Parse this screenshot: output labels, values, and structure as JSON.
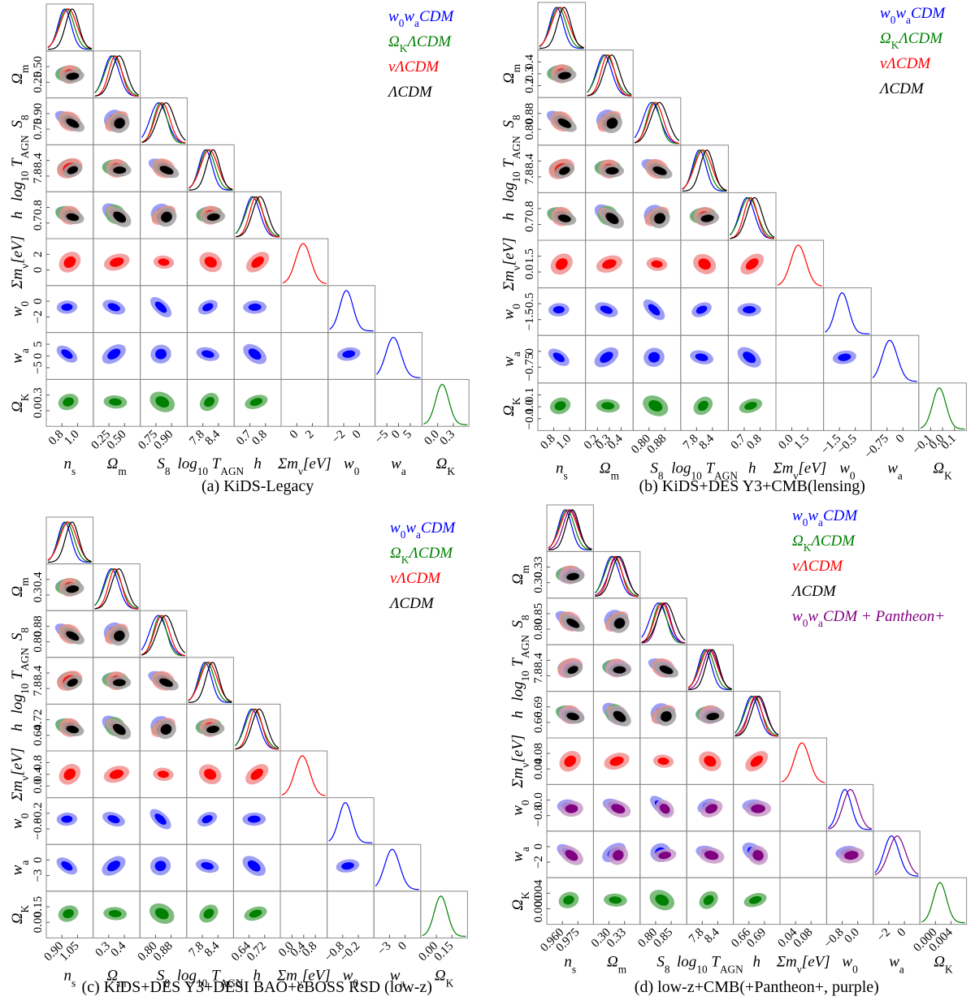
{
  "parameters": [
    {
      "label": [
        "n",
        {
          "sub": "s"
        }
      ]
    },
    {
      "label": [
        "Ω",
        {
          "sub": "m"
        }
      ]
    },
    {
      "label": [
        "S",
        {
          "sub": "8"
        }
      ]
    },
    {
      "label": [
        "log",
        {
          "sub": "10"
        },
        " T",
        {
          "sub": "AGN"
        }
      ]
    },
    {
      "label": [
        "h"
      ]
    },
    {
      "label": [
        "Σm",
        {
          "sub": "ν"
        },
        "[eV]"
      ]
    },
    {
      "label": [
        "w",
        {
          "sub": "0"
        }
      ]
    },
    {
      "label": [
        "w",
        {
          "sub": "a"
        }
      ]
    },
    {
      "label": [
        "Ω",
        {
          "sub": "K"
        }
      ]
    }
  ],
  "panels": [
    {
      "caption": "(a) KiDS-Legacy",
      "legend": [
        {
          "name": [
            "w",
            {
              "sub": "0"
            },
            "w",
            {
              "sub": "a"
            },
            "CDM"
          ],
          "color": "#0000ff"
        },
        {
          "name": [
            "Ω",
            {
              "sub": "K"
            },
            "ΛCDM"
          ],
          "color": "#008000"
        },
        {
          "name": [
            "νΛCDM"
          ],
          "color": "#ff0000"
        },
        {
          "name": [
            "ΛCDM"
          ],
          "color": "#000000"
        }
      ],
      "ticks": [
        [
          "0.8",
          "1.0"
        ],
        [
          "0.25",
          "0.50"
        ],
        [
          "0.75",
          "0.90"
        ],
        [
          "7.8",
          "8.4"
        ],
        [
          "0.7",
          "0.8"
        ],
        [
          "0",
          "2"
        ],
        [
          "−2",
          "0"
        ],
        [
          "−5",
          "0",
          "5"
        ],
        [
          "0.0",
          "0.3"
        ]
      ]
    },
    {
      "caption": "(b) KiDS+DES Y3+CMB(lensing)",
      "legend": [
        {
          "name": [
            "w",
            {
              "sub": "0"
            },
            "w",
            {
              "sub": "a"
            },
            "CDM"
          ],
          "color": "#0000ff"
        },
        {
          "name": [
            "Ω",
            {
              "sub": "K"
            },
            "ΛCDM"
          ],
          "color": "#008000"
        },
        {
          "name": [
            "νΛCDM"
          ],
          "color": "#ff0000"
        },
        {
          "name": [
            "ΛCDM"
          ],
          "color": "#000000"
        }
      ],
      "ticks": [
        [
          "0.8",
          "1.0"
        ],
        [
          "0.2",
          "0.3",
          "0.4"
        ],
        [
          "0.80",
          "0.88"
        ],
        [
          "7.8",
          "8.4"
        ],
        [
          "0.7",
          "0.8"
        ],
        [
          "0.0",
          "1.5"
        ],
        [
          "−1.5",
          "−0.5"
        ],
        [
          "−0.75",
          "0"
        ],
        [
          "−0.1",
          "0.0",
          "0.1"
        ]
      ]
    },
    {
      "caption": "(c) KiDS+DES Y3+DESI BAO+eBOSS RSD (low-z)",
      "legend": [
        {
          "name": [
            "w",
            {
              "sub": "0"
            },
            "w",
            {
              "sub": "a"
            },
            "CDM"
          ],
          "color": "#0000ff"
        },
        {
          "name": [
            "Ω",
            {
              "sub": "K"
            },
            "ΛCDM"
          ],
          "color": "#008000"
        },
        {
          "name": [
            "νΛCDM"
          ],
          "color": "#ff0000"
        },
        {
          "name": [
            "ΛCDM"
          ],
          "color": "#000000"
        }
      ],
      "ticks": [
        [
          "0.90",
          "1.05"
        ],
        [
          "0.3",
          "0.4"
        ],
        [
          "0.80",
          "0.88"
        ],
        [
          "7.8",
          "8.4"
        ],
        [
          "0.64",
          "0.72"
        ],
        [
          "0.0",
          "0.4",
          "0.8"
        ],
        [
          "−0.8",
          "−0.2"
        ],
        [
          "−3",
          "0"
        ],
        [
          "0.00",
          "0.15"
        ]
      ]
    },
    {
      "caption": "(d) low-z+CMB(+Pantheon+, purple)",
      "legend": [
        {
          "name": [
            "w",
            {
              "sub": "0"
            },
            "w",
            {
              "sub": "a"
            },
            "CDM"
          ],
          "color": "#0000ff"
        },
        {
          "name": [
            "Ω",
            {
              "sub": "K"
            },
            "ΛCDM"
          ],
          "color": "#008000"
        },
        {
          "name": [
            "νΛCDM"
          ],
          "color": "#ff0000"
        },
        {
          "name": [
            "ΛCDM"
          ],
          "color": "#000000"
        },
        {
          "name": [
            "w",
            {
              "sub": "0"
            },
            "w",
            {
              "sub": "a"
            },
            "CDM + Pantheon+"
          ],
          "color": "#800080"
        }
      ],
      "ticks": [
        [
          "0.960",
          "0.975"
        ],
        [
          "0.30",
          "0.33"
        ],
        [
          "0.80",
          "0.85"
        ],
        [
          "7.8",
          "8.4"
        ],
        [
          "0.66",
          "0.69"
        ],
        [
          "0.04",
          "0.08"
        ],
        [
          "−0.8",
          "0.0"
        ],
        [
          "−2",
          "0"
        ],
        [
          "0.000",
          "0.004"
        ]
      ]
    }
  ]
}
